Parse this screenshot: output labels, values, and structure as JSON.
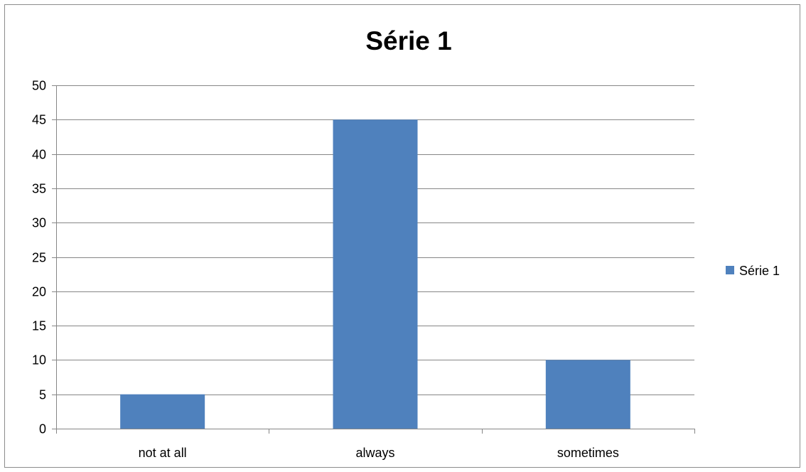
{
  "chart_data": {
    "type": "bar",
    "title": "Série 1",
    "categories": [
      "not at all",
      "always",
      "sometimes"
    ],
    "series": [
      {
        "name": "Série 1",
        "values": [
          5,
          45,
          10
        ],
        "color": "#4f81bd"
      }
    ],
    "ylim": [
      0,
      50
    ],
    "yticks": [
      0,
      5,
      10,
      15,
      20,
      25,
      30,
      35,
      40,
      45,
      50
    ],
    "xlabel": "",
    "ylabel": "",
    "grid": true,
    "legend_position": "right"
  }
}
